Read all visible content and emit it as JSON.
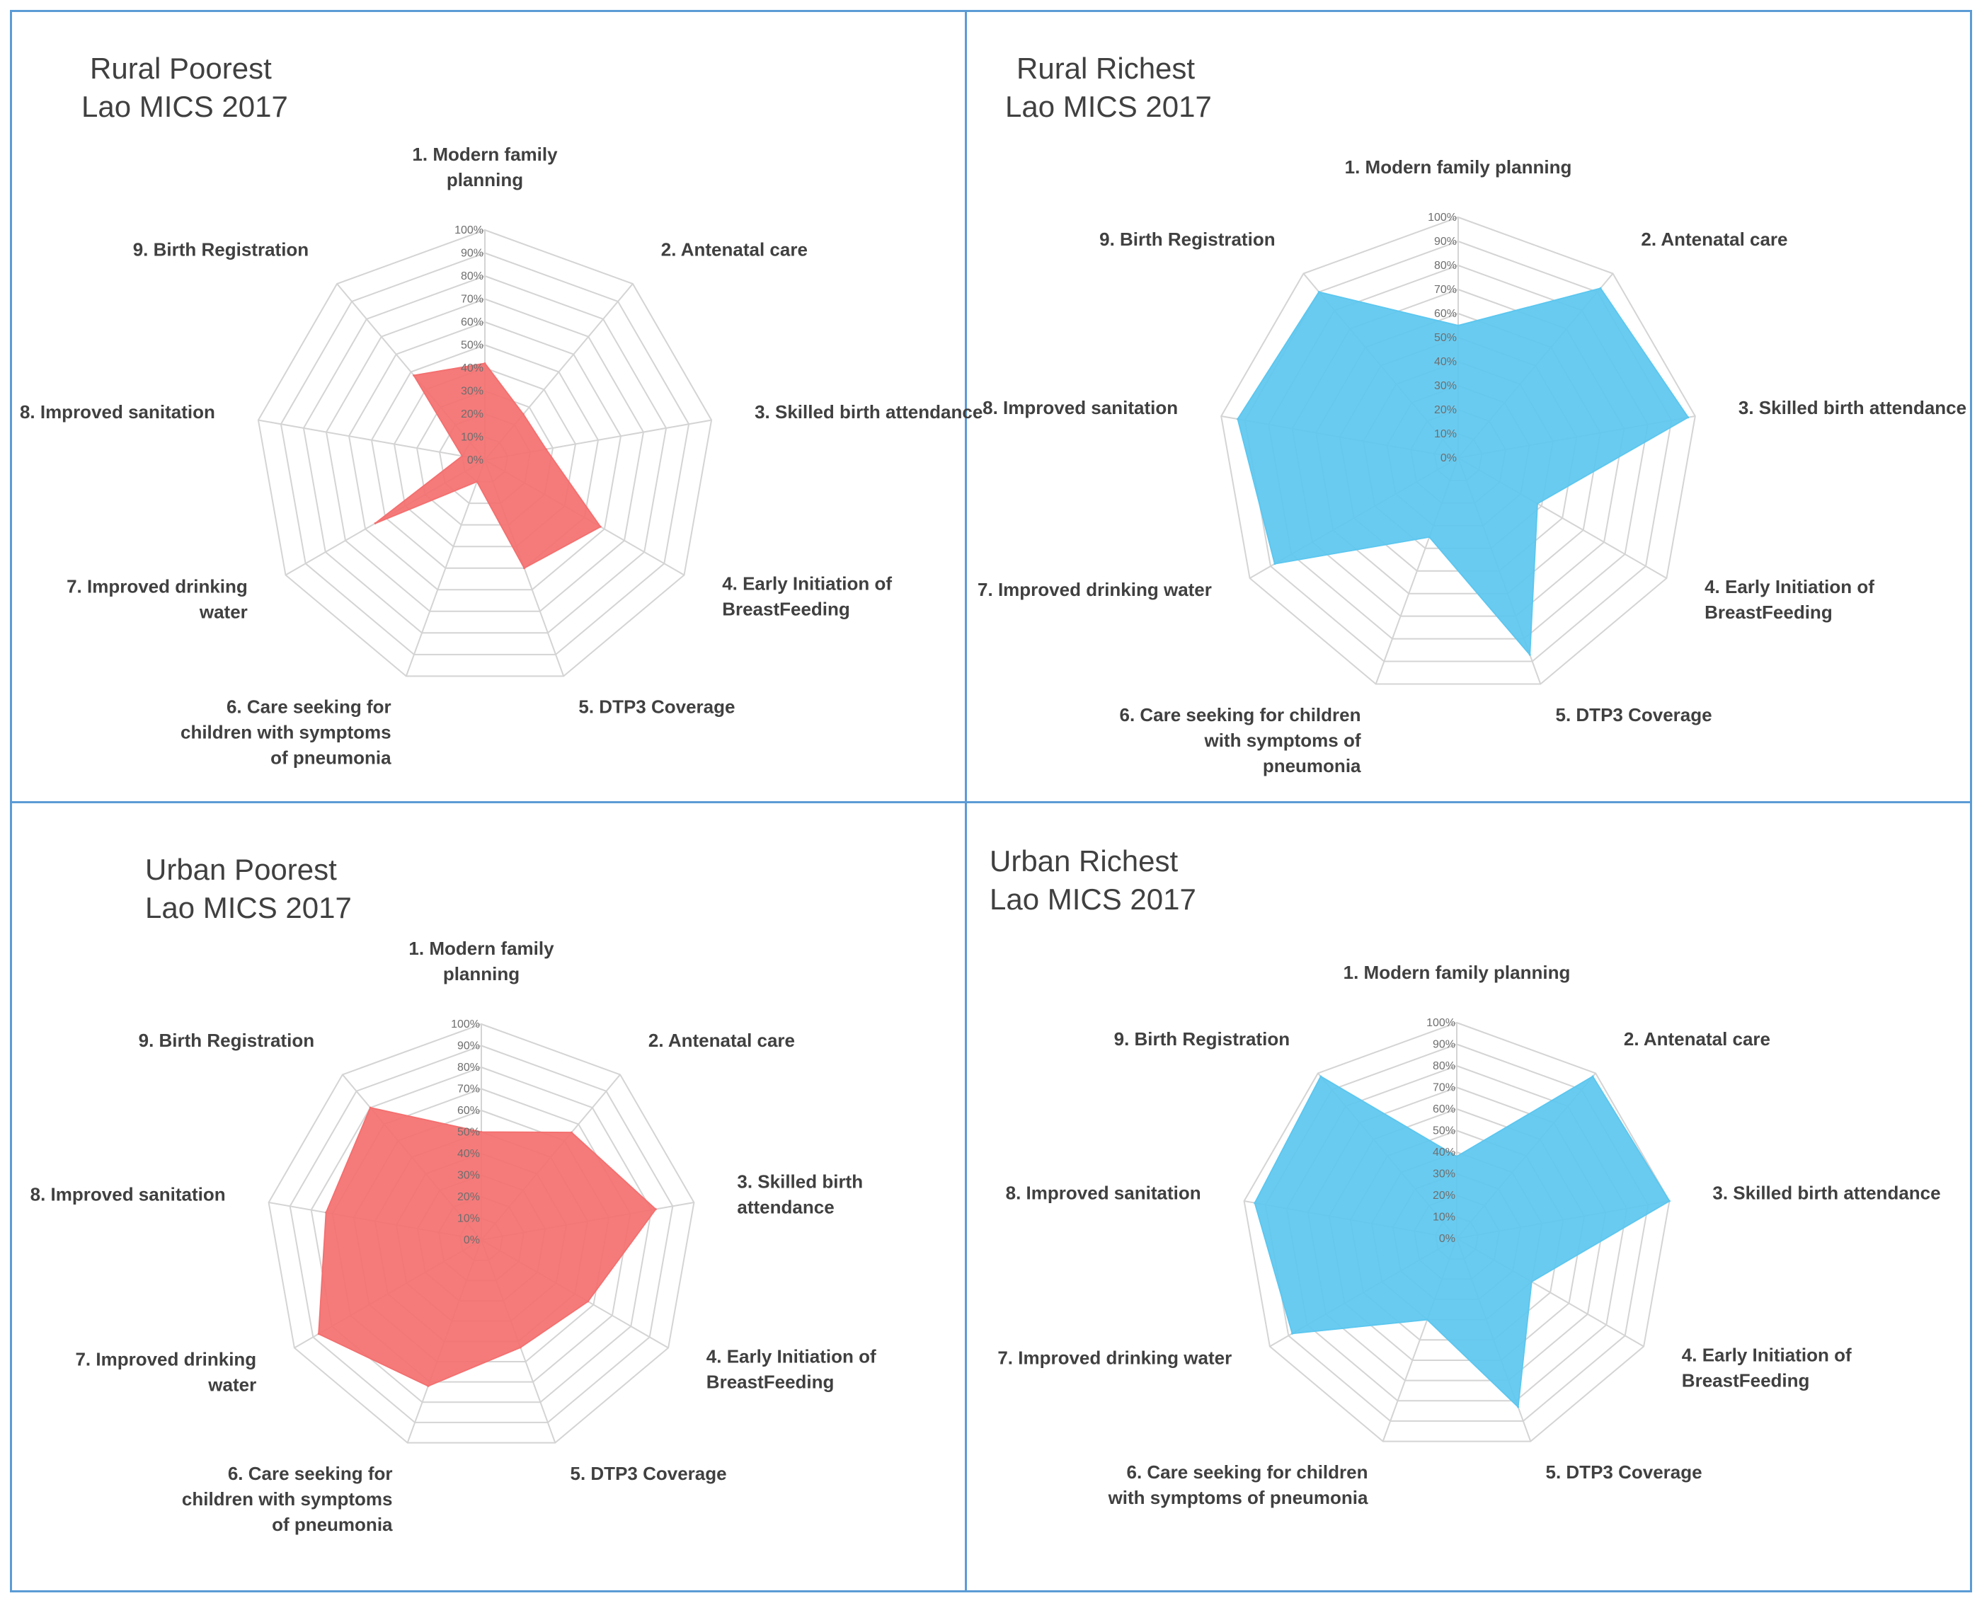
{
  "colors": {
    "poorest": "#f47070",
    "richest": "#5dc7ef",
    "border": "#5b9bd5"
  },
  "chart_data": [
    {
      "type": "radar",
      "title": "Rural Poorest",
      "subtitle": "Lao MICS 2017",
      "tone": "poorest",
      "rlim": [
        0,
        100
      ],
      "ticks": [
        "0%",
        "10%",
        "20%",
        "30%",
        "40%",
        "50%",
        "60%",
        "70%",
        "80%",
        "90%",
        "100%"
      ],
      "axes": [
        [
          "1. Modern family",
          "planning"
        ],
        [
          "2. Antenatal care"
        ],
        [
          "3. Skilled birth attendance"
        ],
        [
          "4. Early Initiation of",
          "BreastFeeding"
        ],
        [
          "5. DTP3 Coverage"
        ],
        [
          "6. Care seeking for",
          "children with symptoms",
          "of pneumonia"
        ],
        [
          "7. Improved drinking",
          "water"
        ],
        [
          "8. Improved sanitation"
        ],
        [
          "9. Birth Registration"
        ]
      ],
      "values": [
        42,
        26,
        27,
        58,
        50,
        10,
        55,
        10,
        48
      ]
    },
    {
      "type": "radar",
      "title": "Rural Richest",
      "subtitle": "Lao MICS 2017",
      "tone": "richest",
      "rlim": [
        0,
        100
      ],
      "ticks": [
        "0%",
        "10%",
        "20%",
        "30%",
        "40%",
        "50%",
        "60%",
        "70%",
        "80%",
        "90%",
        "100%"
      ],
      "axes": [
        [
          "1. Modern family planning"
        ],
        [
          "2. Antenatal care"
        ],
        [
          "3. Skilled birth attendance"
        ],
        [
          "4. Early Initiation of",
          "BreastFeeding"
        ],
        [
          "5. DTP3 Coverage"
        ],
        [
          "6. Care seeking for children",
          "with symptoms of",
          "pneumonia"
        ],
        [
          "7. Improved drinking water"
        ],
        [
          "8. Improved sanitation"
        ],
        [
          "9. Birth Registration"
        ]
      ],
      "values": [
        55,
        92,
        97,
        38,
        87,
        35,
        88,
        93,
        90
      ]
    },
    {
      "type": "radar",
      "title": "Urban  Poorest",
      "subtitle": "Lao MICS 2017",
      "tone": "poorest",
      "rlim": [
        0,
        100
      ],
      "ticks": [
        "0%",
        "10%",
        "20%",
        "30%",
        "40%",
        "50%",
        "60%",
        "70%",
        "80%",
        "90%",
        "100%"
      ],
      "axes": [
        [
          "1. Modern family",
          "planning"
        ],
        [
          "2. Antenatal care"
        ],
        [
          "3. Skilled birth",
          "attendance"
        ],
        [
          "4. Early Initiation of",
          "BreastFeeding"
        ],
        [
          "5. DTP3 Coverage"
        ],
        [
          "6. Care seeking for",
          "children with symptoms",
          "of pneumonia"
        ],
        [
          "7. Improved drinking",
          "water"
        ],
        [
          "8. Improved sanitation"
        ],
        [
          "9. Birth Registration"
        ]
      ],
      "values": [
        50,
        65,
        82,
        57,
        53,
        72,
        87,
        73,
        80
      ]
    },
    {
      "type": "radar",
      "title": "Urban Richest",
      "subtitle": "Lao MICS 2017",
      "tone": "richest",
      "rlim": [
        0,
        100
      ],
      "ticks": [
        "0%",
        "10%",
        "20%",
        "30%",
        "40%",
        "50%",
        "60%",
        "70%",
        "80%",
        "90%",
        "100%"
      ],
      "axes": [
        [
          "1. Modern family planning"
        ],
        [
          "2. Antenatal care"
        ],
        [
          "3. Skilled birth attendance"
        ],
        [
          "4. Early Initiation of",
          "BreastFeeding"
        ],
        [
          "5. DTP3 Coverage"
        ],
        [
          "6. Care seeking for children",
          "with symptoms of pneumonia"
        ],
        [
          "7. Improved drinking water"
        ],
        [
          "8. Improved sanitation"
        ],
        [
          "9. Birth Registration"
        ]
      ],
      "values": [
        38,
        98,
        100,
        40,
        83,
        40,
        88,
        95,
        98
      ]
    }
  ]
}
